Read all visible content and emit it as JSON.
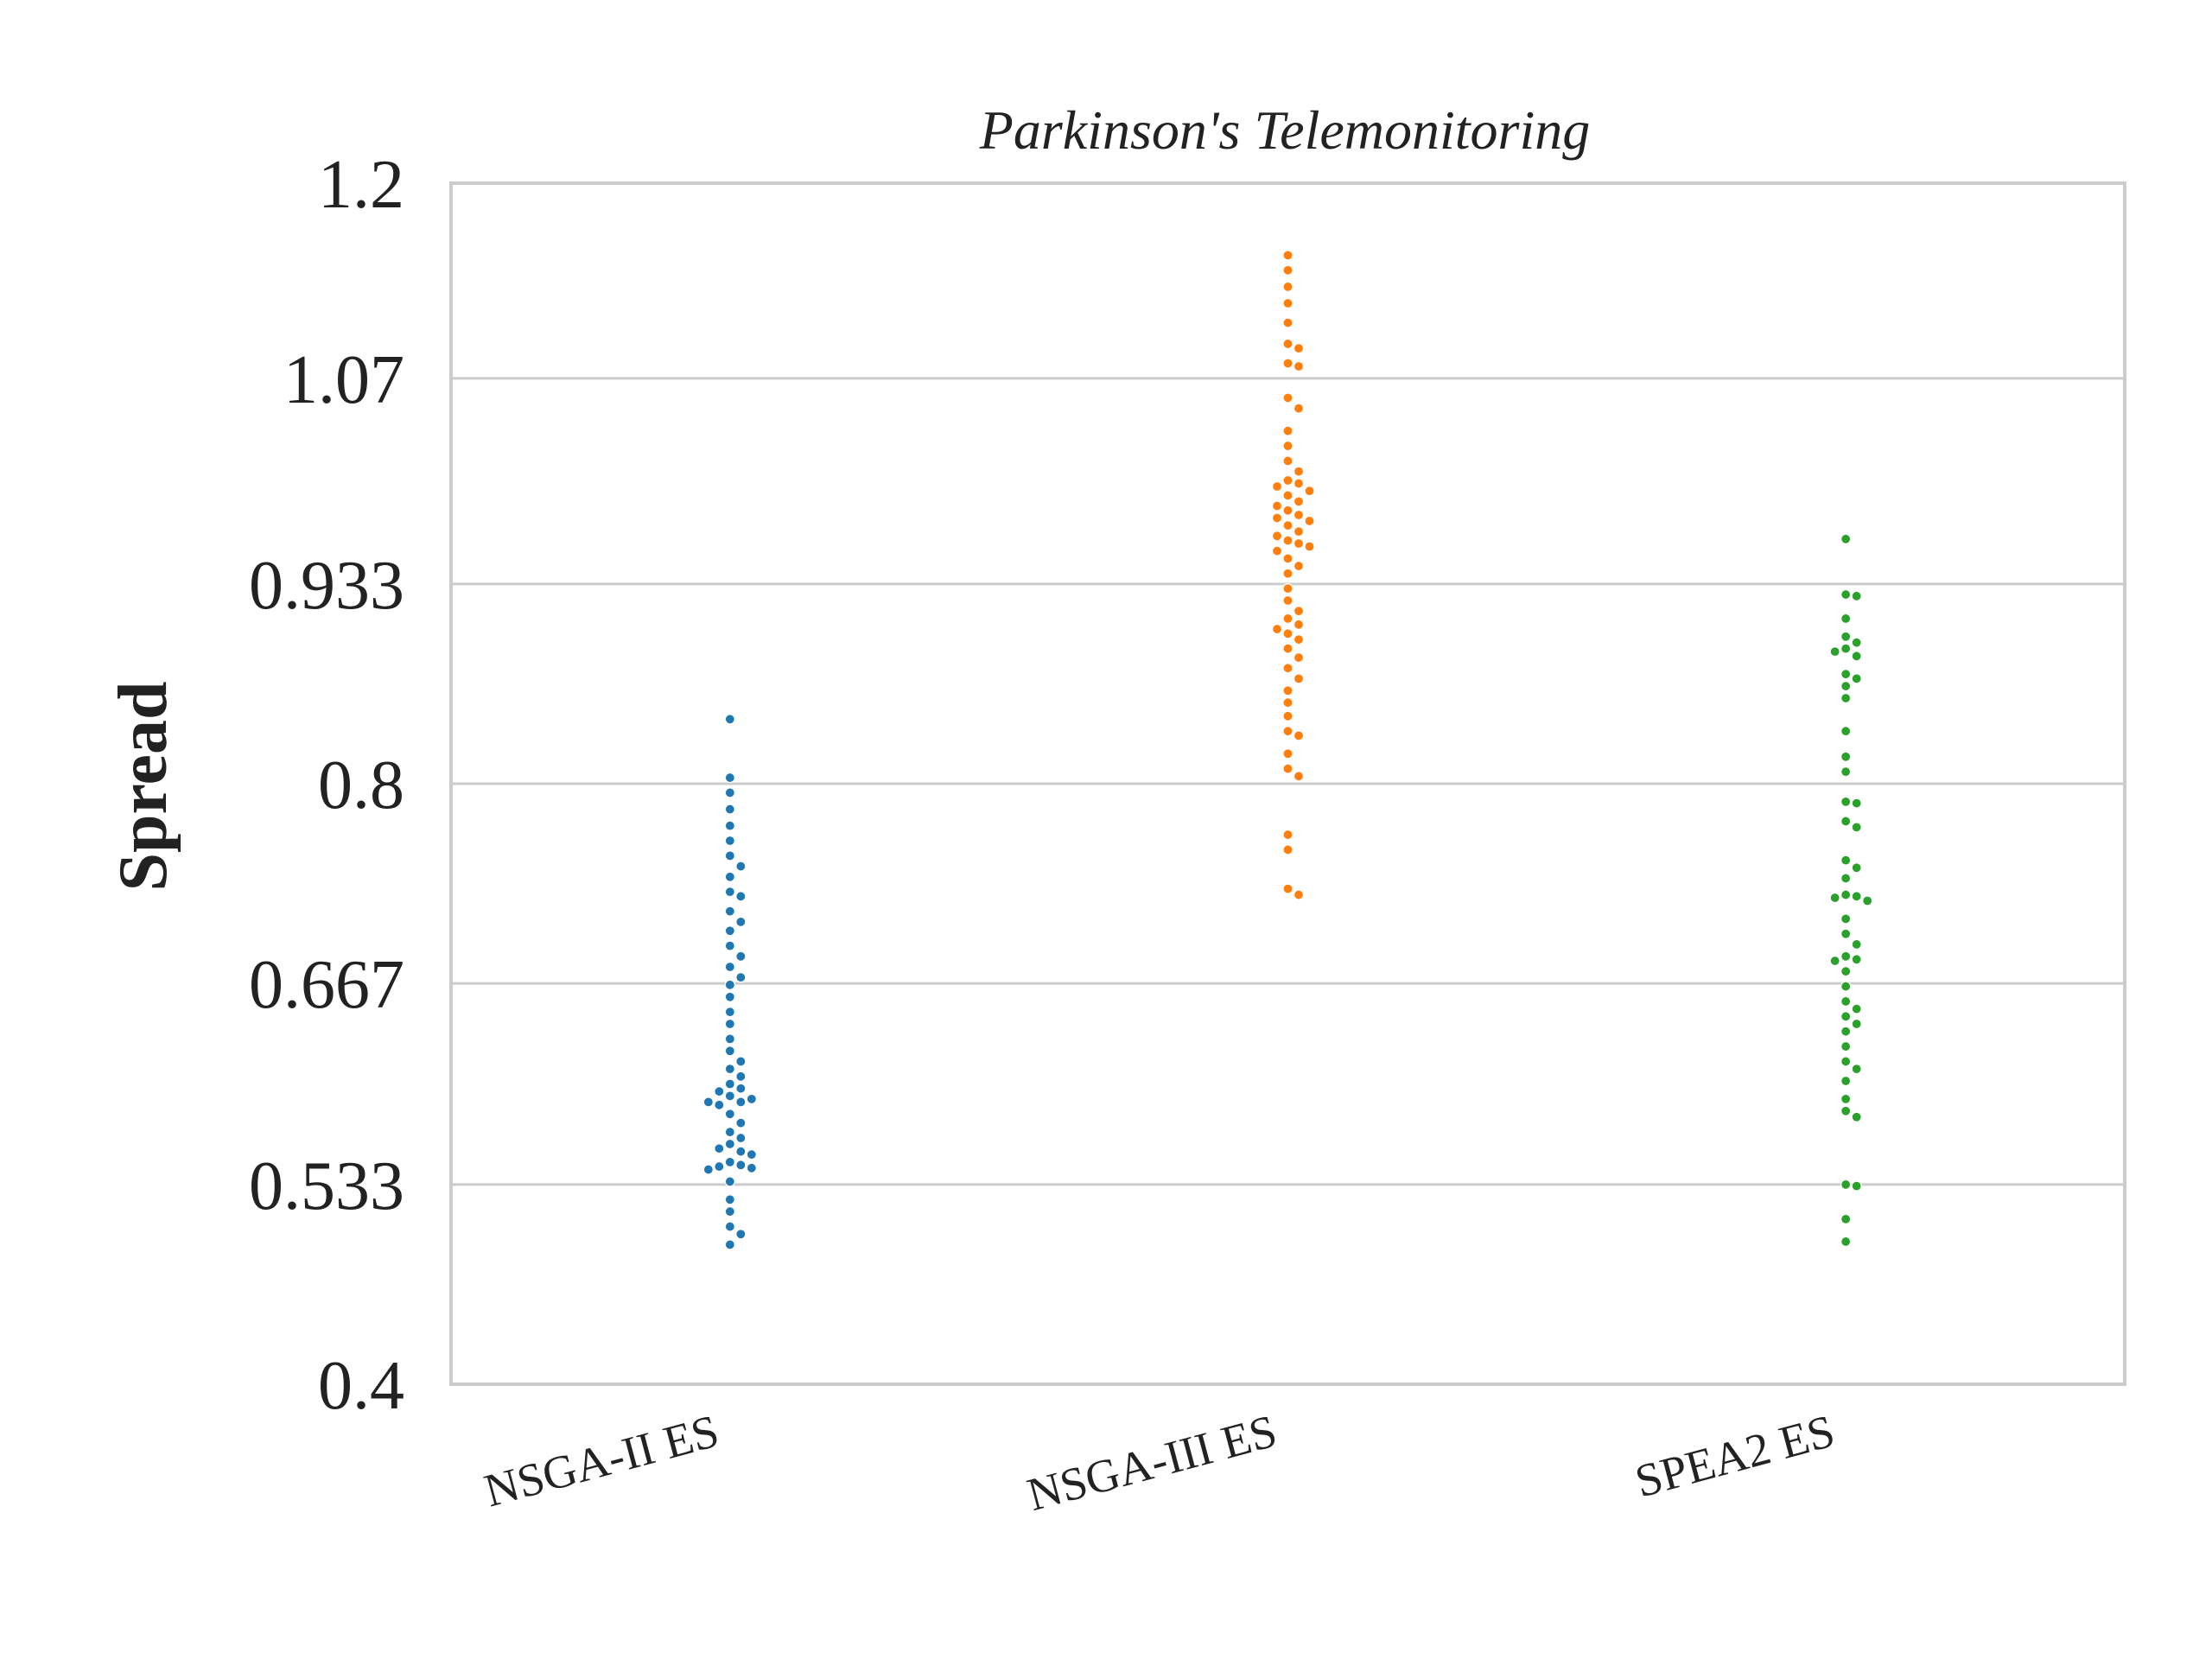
{
  "chart_data": {
    "type": "scatter",
    "title": "Parkinson's Telemonitoring",
    "xlabel": "",
    "ylabel": "Spread",
    "ylim": [
      0.4,
      1.2
    ],
    "yticks": [
      "0.4",
      "0.533",
      "0.667",
      "0.8",
      "0.933",
      "1.07",
      "1.2"
    ],
    "grid": "horizontal",
    "categories": [
      "NSGA-II ES",
      "NSGA-III ES",
      "SPEA2 ES"
    ],
    "series": [
      {
        "color": "#1f77b4",
        "values": [
          0.843,
          0.804,
          0.794,
          0.783,
          0.772,
          0.762,
          0.752,
          0.745,
          0.738,
          0.728,
          0.725,
          0.715,
          0.708,
          0.702,
          0.692,
          0.685,
          0.678,
          0.671,
          0.666,
          0.658,
          0.648,
          0.64,
          0.63,
          0.622,
          0.615,
          0.61,
          0.605,
          0.6,
          0.597,
          0.595,
          0.592,
          0.59,
          0.588,
          0.588,
          0.586,
          0.58,
          0.574,
          0.568,
          0.564,
          0.56,
          0.557,
          0.555,
          0.553,
          0.548,
          0.546,
          0.545,
          0.544,
          0.543,
          0.535,
          0.523,
          0.515,
          0.505,
          0.5,
          0.493
        ]
      },
      {
        "color": "#ff7f0e",
        "values": [
          1.152,
          1.142,
          1.131,
          1.12,
          1.107,
          1.093,
          1.09,
          1.08,
          1.078,
          1.057,
          1.05,
          1.035,
          1.025,
          1.015,
          1.008,
          1.002,
          1.0,
          0.998,
          0.995,
          0.992,
          0.988,
          0.985,
          0.982,
          0.979,
          0.977,
          0.975,
          0.972,
          0.968,
          0.965,
          0.962,
          0.96,
          0.958,
          0.955,
          0.95,
          0.945,
          0.94,
          0.93,
          0.922,
          0.915,
          0.91,
          0.906,
          0.903,
          0.9,
          0.896,
          0.89,
          0.884,
          0.877,
          0.87,
          0.862,
          0.854,
          0.845,
          0.835,
          0.832,
          0.82,
          0.81,
          0.805,
          0.766,
          0.756,
          0.73,
          0.726
        ]
      },
      {
        "color": "#2ca02c",
        "values": [
          0.963,
          0.926,
          0.925,
          0.91,
          0.898,
          0.894,
          0.89,
          0.888,
          0.885,
          0.873,
          0.87,
          0.865,
          0.857,
          0.835,
          0.818,
          0.808,
          0.788,
          0.787,
          0.775,
          0.771,
          0.749,
          0.744,
          0.737,
          0.726,
          0.725,
          0.724,
          0.722,
          0.71,
          0.7,
          0.693,
          0.685,
          0.683,
          0.682,
          0.675,
          0.665,
          0.655,
          0.65,
          0.645,
          0.64,
          0.635,
          0.625,
          0.615,
          0.61,
          0.602,
          0.59,
          0.582,
          0.578,
          0.533,
          0.532,
          0.51,
          0.495
        ]
      }
    ]
  }
}
